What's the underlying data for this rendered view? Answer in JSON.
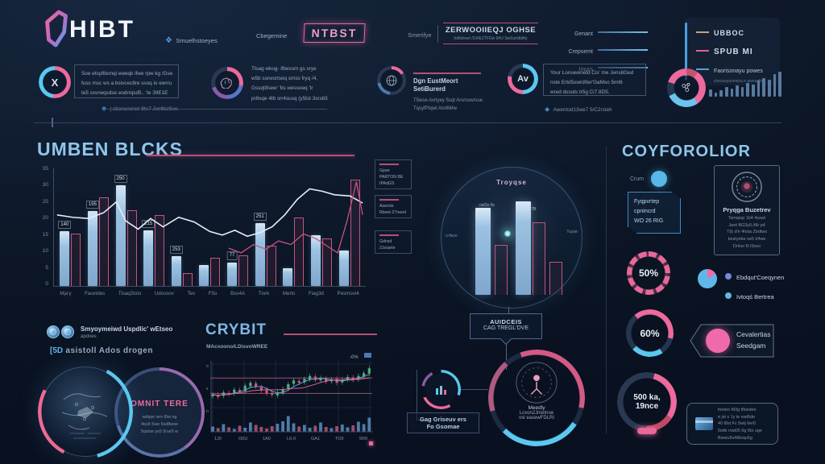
{
  "header": {
    "logo_text": "HIBT",
    "partner1_label": "Smuelhstoeyes",
    "partner2_label": "Cbegemine",
    "partner2_badge": "NTBST",
    "report_prefix": "Smerifye",
    "report_title": "ZERWOOIIEQJ OGHSE",
    "report_subtitle": "bdttdnwrt /Ct#EZTFDw 9#U SwSurtdtdfty",
    "mini_legend": {
      "item1": "Genant",
      "item2": "Crepsemt",
      "item3": "Imurs"
    },
    "legend_panel": {
      "item1": {
        "color": "#c8a183",
        "label": "UBBOC"
      },
      "item2": {
        "color": "#e0628e",
        "label": "SPUB MI"
      },
      "item3": {
        "color": "#5a9fd4",
        "label": "Faorisonayu powes"
      },
      "note": "s/srossyursmica e awosqfst"
    }
  },
  "features": {
    "f1": {
      "glyph": "X",
      "line1": "Soe etsy8bonqi eweqk ifwe rpw kg /Gse",
      "line2": "fuss msc ws a bsivcec8re ssoq io ewrru",
      "line3": "te5 ssvrwqsdse eodrrqsd5.. 'te 39E1E",
      "foot": "| sbanceonor 8te7 Jwr8tsr5ws-"
    },
    "f2": {
      "line1": "Tlsag wkog- ifbessm gs srye",
      "line2": "w5b ssrwsrtseq smss fryq /4,",
      "line3": "Gssqt8sew' 'bs wessoeq 'tr",
      "line4": "pr8sqe 4tb srr4susq (y5tst 3srsb5"
    },
    "f3": {
      "title1": "Dgn EustMeort",
      "title2": "SetiBurerd",
      "line1": "T5wse Avrtyey 5sqt Arsrsswrsse",
      "line2": "TqsyfPtqwt Atst6Mw"
    },
    "f4": {
      "glyph": "Av",
      "line1": "Your Lonuwenetd Cis' me Jens8Ged",
      "line2": "nste Ertd5swrd0er'GaMso 5mt6",
      "line3": "wred dssuts tr5g Ci7.8D5.",
      "foot": "Awentod13we7 5/C2rsteh"
    }
  },
  "annotations": {
    "a1": {
      "l1": "Gpan",
      "l2": "PARTON BE",
      "l3": "IPAdGS"
    },
    "a2": {
      "l1": "Asernie",
      "l2": "Rbent Z7need"
    },
    "a3": {
      "l1": "Gdnsd",
      "l2": "2Jssarte"
    }
  },
  "callout": {
    "line1": "AUIDCEIS",
    "line2": "CAG TREGL'DVE"
  },
  "flow": {
    "node_line1": "Gag Griseuv ers",
    "node_line2": "Fo Gsomae",
    "ring_line1": "Meedly",
    "ring_line2": "Lcxon2Jmetnoe",
    "ring_line3": "vst easewFDLRI"
  },
  "portfolio": {
    "title": "COYFOROLIOR",
    "crum": "Crum",
    "notch": {
      "l1": "Fyqpvrtep",
      "l2": "cpnincrd",
      "l3": "WO 26 RIG"
    },
    "card": {
      "title": "Pryqga Buzetrev",
      "l1": "Tsmqsqr 1b4 4sswt",
      "l2": "Jwst BG3y0,/t8r p4",
      "l3": "T(b d'e 4hsla Zbdtws",
      "l4": "bestyebe oe5 t/4we",
      "l5": "Drlosr R.f3sso"
    },
    "tag": {
      "l1": "Cevalertias",
      "l2": "Seedgam"
    },
    "card2": {
      "l1": "fonteo M3g tfloeden",
      "l2": "e jst s 1y te ewt5de",
      "l3": "40 t8st Fc 5wtj 6er0",
      "l4": "5wtb rrwt05 6g t5e uge",
      "l5": "Bswtu5s4t8oqu5g"
    }
  },
  "bottom_left": {
    "head1": "Smyoymeiwd Uspdlic' wEtseo",
    "head1b": "apdoes",
    "head2_prefix": "[5D",
    "head2": " asistoll Ados drogen",
    "omnit_title": "OMNIT TERE",
    "omnit_l1": "wdqse wrv t5w og",
    "omnit_l2": "4su5 5we 5sd8wse",
    "omnit_l3": "5qstse ys5 5rse5 w"
  },
  "rings": {
    "f1": [
      {
        "color": "#ee6a9c",
        "pct": 52
      },
      {
        "color": "#5ac8f0",
        "pct": 48
      }
    ],
    "f2": [
      {
        "color": "#ee6a9c",
        "pct": 28
      },
      {
        "color": "#5a74c8",
        "pct": 22
      },
      {
        "color": "#8a5aa8",
        "pct": 20
      },
      {
        "color": "#2a3a56",
        "pct": 30
      }
    ],
    "f3": [
      {
        "color": "#ee6a9c",
        "pct": 16
      },
      {
        "color": "#2a3a56",
        "pct": 36
      },
      {
        "color": "#4a7ab0",
        "pct": 20
      },
      {
        "color": "#2a3a56",
        "pct": 28
      }
    ],
    "f4": [
      {
        "color": "#5ac8f0",
        "pct": 50
      },
      {
        "color": "#ee6a9c",
        "pct": 28
      },
      {
        "color": "#2a3a56",
        "pct": 22
      }
    ],
    "header_donut": [
      {
        "color": "#c0566e",
        "pct": 10
      },
      {
        "color": "#ee6a9c",
        "pct": 30
      },
      {
        "color": "#6cc3ee",
        "pct": 28
      },
      {
        "color": "#24354f",
        "pct": 12
      },
      {
        "color": "#ee6a9c",
        "pct": 20
      }
    ],
    "node": [
      {
        "color": "#5ac8f0",
        "pct": 30
      },
      {
        "color": "transparent",
        "pct": 12
      },
      {
        "color": "#ee6a9c",
        "pct": 26
      },
      {
        "color": "transparent",
        "pct": 10
      },
      {
        "color": "#8a5aa8",
        "pct": 14
      },
      {
        "color": "transparent",
        "pct": 8
      }
    ],
    "flow": [
      {
        "color": "#d45a85",
        "pct": 34
      },
      {
        "color": "#1c2a42",
        "pct": 6
      },
      {
        "color": "#5ac8f0",
        "pct": 28
      },
      {
        "color": "#1c2a42",
        "pct": 8
      },
      {
        "color": "#b05a80",
        "pct": 18
      },
      {
        "color": "#1c2a42",
        "pct": 6
      }
    ],
    "circleA": [
      {
        "color": "transparent",
        "pct": 5
      },
      {
        "color": "#5ac8f0",
        "pct": 38
      },
      {
        "color": "transparent",
        "pct": 12
      },
      {
        "color": "#ee6a96",
        "pct": 25
      },
      {
        "color": "transparent",
        "pct": 20
      }
    ],
    "circleB": [
      {
        "color": "#9a6ab0",
        "pct": 40
      },
      {
        "color": "#5a74a8",
        "pct": 30
      },
      {
        "color": "#3a4e78",
        "pct": 30
      }
    ],
    "pie": [
      {
        "color": "#f06aaa",
        "pct": 16
      },
      {
        "color": "#5fb7e8",
        "pct": 84
      }
    ]
  },
  "chart_data": [
    {
      "id": "umben_blocks",
      "type": "bar",
      "title": "UMBEN BLCKS",
      "categories": [
        "Mja'y",
        "Fauvides",
        "Tisaq2tolo",
        "Udossov",
        "Tev",
        "F5o",
        "Bso4A",
        "Tiork",
        "Merts",
        "Fiag3d",
        "Pesmovi4"
      ],
      "series": [
        {
          "name": "solid_blue",
          "color": "#a9cdec",
          "values": [
            46,
            63,
            85,
            47,
            25,
            18,
            20,
            53,
            15,
            43,
            30
          ]
        },
        {
          "name": "pink_outline",
          "color": "#c5557d",
          "values": [
            44,
            75,
            64,
            60,
            11,
            24,
            26,
            34,
            58,
            40,
            90
          ]
        }
      ],
      "bar_labels": [
        "140",
        "195",
        "250",
        "215",
        "253",
        "",
        "77",
        "251",
        "",
        "",
        ""
      ],
      "y_ticks": [
        "35",
        "30",
        "25",
        "20",
        "15",
        "10",
        "5",
        "0"
      ],
      "trend_white": [
        [
          1,
          60
        ],
        [
          6,
          58
        ],
        [
          11,
          57
        ],
        [
          16,
          62
        ],
        [
          20,
          71
        ],
        [
          23,
          55
        ],
        [
          27,
          48
        ],
        [
          31,
          57
        ],
        [
          35,
          50
        ],
        [
          40,
          58
        ],
        [
          45,
          54
        ],
        [
          50,
          46
        ],
        [
          54,
          43
        ],
        [
          58,
          47
        ],
        [
          62,
          42
        ],
        [
          66,
          45
        ],
        [
          70,
          50
        ],
        [
          74,
          60
        ],
        [
          78,
          73
        ],
        [
          82,
          82
        ],
        [
          86,
          80
        ],
        [
          90,
          77
        ],
        [
          95,
          76
        ],
        [
          99,
          70
        ]
      ],
      "trend_pink": [
        [
          56,
          32
        ],
        [
          60,
          28
        ],
        [
          64,
          35
        ],
        [
          68,
          31
        ],
        [
          72,
          38
        ],
        [
          76,
          35
        ],
        [
          80,
          44
        ],
        [
          84,
          40
        ],
        [
          88,
          33
        ],
        [
          91,
          28
        ],
        [
          94,
          55
        ],
        [
          97,
          88
        ],
        [
          99,
          60
        ]
      ],
      "grid": false,
      "legend_position": "none",
      "ylim": [
        0,
        100
      ]
    },
    {
      "id": "sphere",
      "type": "bar",
      "title": "Troyqse",
      "left_label": "s-fwce",
      "right_label": "Tuyse",
      "tag1": "rieOe-8s",
      "tag2": "7B",
      "bars": [
        {
          "kind": "solid",
          "x": 24,
          "h": 62
        },
        {
          "kind": "outline",
          "x": 38,
          "h": 36
        },
        {
          "kind": "solid",
          "x": 53,
          "h": 67
        },
        {
          "kind": "outline",
          "x": 65,
          "h": 52
        },
        {
          "kind": "outline",
          "x": 77,
          "h": 24
        }
      ]
    },
    {
      "id": "header_mini",
      "type": "bar",
      "values": [
        14,
        8,
        12,
        18,
        15,
        22,
        19,
        26,
        24,
        31,
        36,
        33,
        43,
        48
      ],
      "color": "#5d7fa4"
    },
    {
      "id": "crybit",
      "type": "candlestick",
      "title": "CRYBIT",
      "subtitle": "MAcxoono/LDisvoWREE",
      "badge": "-0%",
      "x_labels": [
        "1J0",
        "O0U",
        "1A0",
        "L6-0",
        "GA1",
        "TO0",
        "5R0"
      ],
      "y_ticks": [
        "o",
        "x",
        "n"
      ],
      "levels": [
        36,
        68
      ],
      "up_color": "#4fae7a",
      "down_color": "#d15577",
      "ma_fast_color": "#5fa8e8",
      "ma_slow_color": "#e8689a",
      "candles": [
        [
          30,
          34
        ],
        [
          33,
          29
        ],
        [
          31,
          38
        ],
        [
          37,
          35
        ],
        [
          36,
          44
        ],
        [
          43,
          40
        ],
        [
          41,
          52
        ],
        [
          51,
          58
        ],
        [
          57,
          50
        ],
        [
          49,
          42
        ],
        [
          43,
          36
        ],
        [
          37,
          33
        ],
        [
          32,
          38
        ],
        [
          37,
          45
        ],
        [
          46,
          55
        ],
        [
          56,
          63
        ],
        [
          62,
          58
        ],
        [
          59,
          66
        ],
        [
          65,
          72
        ],
        [
          71,
          64
        ],
        [
          63,
          68
        ],
        [
          67,
          60
        ],
        [
          61,
          65
        ],
        [
          66,
          58
        ],
        [
          59,
          64
        ],
        [
          65,
          70
        ],
        [
          69,
          64
        ],
        [
          65,
          72
        ],
        [
          71,
          78
        ],
        [
          77,
          88
        ]
      ],
      "volumes": [
        12,
        8,
        18,
        10,
        6,
        14,
        9,
        22,
        16,
        11,
        7,
        13,
        19,
        25,
        38,
        20,
        12,
        16,
        9,
        14,
        22,
        11,
        8,
        13,
        17,
        10,
        15,
        24,
        18,
        34
      ]
    },
    {
      "id": "portfolio_donuts",
      "type": "donut",
      "donut1": {
        "value": "50%",
        "color": "#e8689a"
      },
      "pie_legend": {
        "item1": {
          "color": "#7b86dd",
          "label": "Ebdqut'Coeqynen"
        },
        "item2": {
          "color": "#5fb7e8",
          "label": "Ivtoqś Bertrea"
        }
      },
      "donut2": {
        "value": "60%",
        "segments": [
          {
            "color": "#ee6a9c",
            "pct": 40
          },
          {
            "color": "#24354f",
            "pct": 12
          },
          {
            "color": "#5ac8f0",
            "pct": 22
          },
          {
            "color": "#24354f",
            "pct": 26
          }
        ]
      },
      "donut3": {
        "value_line1": "500 ka,",
        "value_line2": "19nce",
        "segments": [
          {
            "color": "#ee6a9c",
            "pct": 30
          },
          {
            "color": "#c04a62",
            "pct": 16
          },
          {
            "color": "#2a3852",
            "pct": 54
          }
        ]
      }
    }
  ]
}
